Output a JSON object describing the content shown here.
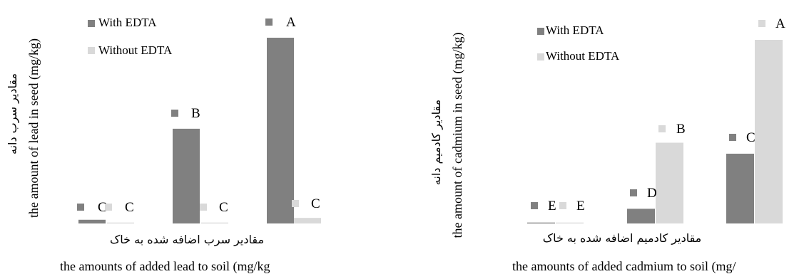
{
  "colors": {
    "with_edta": "#808080",
    "without_edta": "#d9d9d9",
    "text": "#000000"
  },
  "chart_data": [
    {
      "type": "bar",
      "title": "",
      "xlabel": "مقادیر سرب اضافه شده به خاک",
      "xlabel_en": "the amounts of added lead to soil (mg/kg",
      "ylabel": "مقادیر سرب دانه",
      "ylabel_en": "the amount of lead in seed (mg/kg)",
      "categories": [
        "",
        "",
        ""
      ],
      "ylim": [
        0,
        100
      ],
      "grid": false,
      "legend_position": "top-left",
      "series": [
        {
          "name": "With EDTA",
          "values": [
            2,
            51,
            100
          ],
          "letters": [
            "C",
            "B",
            "A"
          ]
        },
        {
          "name": "Without EDTA",
          "values": [
            0.5,
            0.5,
            3
          ],
          "letters": [
            "C",
            "C",
            "C"
          ]
        }
      ]
    },
    {
      "type": "bar",
      "title": "",
      "xlabel": "مقادیر کادمیم اضافه شده به خاک",
      "xlabel_en": "the amounts of added cadmium to soil (mg/",
      "ylabel": "مقادیر کادمیم دانه",
      "ylabel_en": "the amount of cadmium in seed (mg/kg)",
      "categories": [
        "",
        "",
        ""
      ],
      "ylim": [
        0,
        100
      ],
      "grid": false,
      "legend_position": "top-left",
      "series": [
        {
          "name": "With EDTA",
          "values": [
            0.5,
            8,
            38
          ],
          "letters": [
            "E",
            "D",
            "C"
          ]
        },
        {
          "name": "Without EDTA",
          "values": [
            0.5,
            44,
            100
          ],
          "letters": [
            "E",
            "B",
            "A"
          ]
        }
      ]
    }
  ]
}
